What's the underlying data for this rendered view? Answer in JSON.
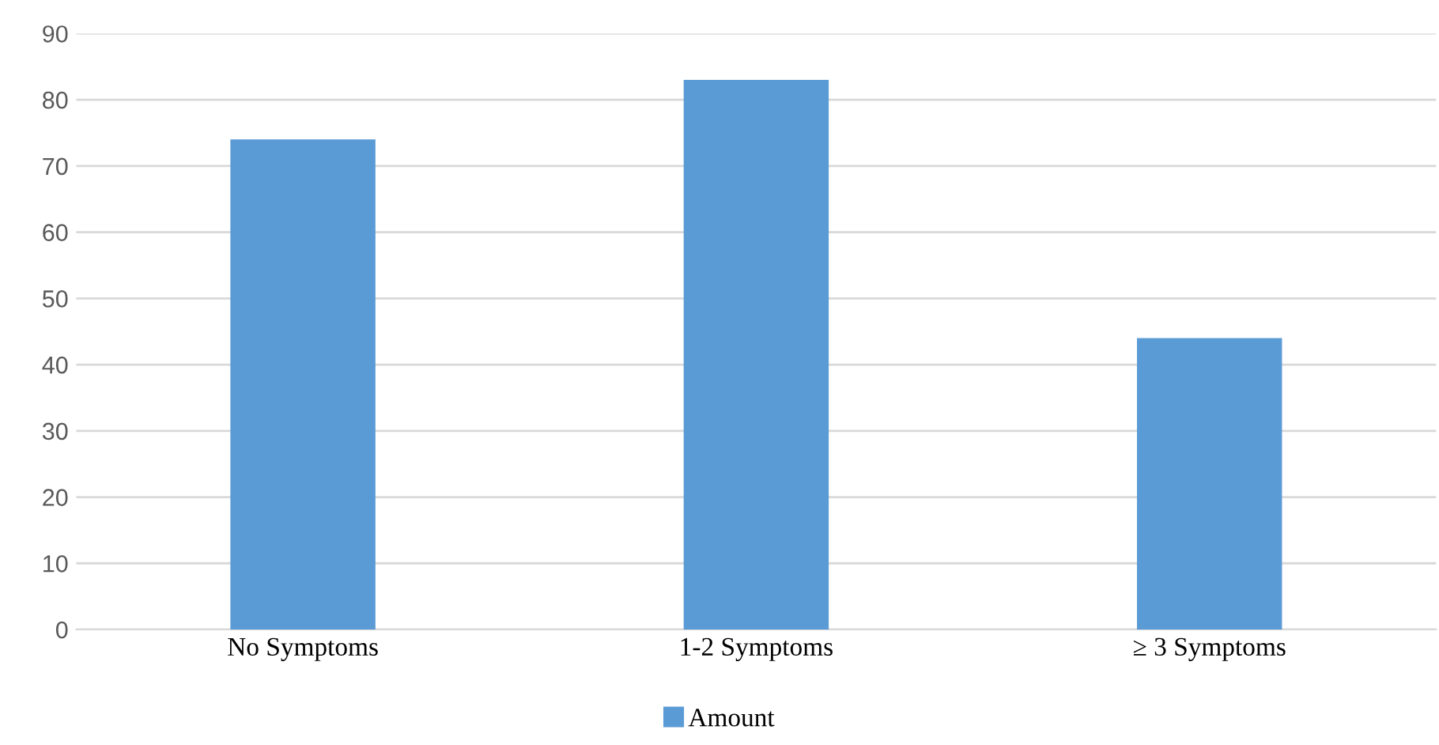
{
  "chart_data": {
    "type": "bar",
    "categories": [
      "No Symptoms",
      "1-2 Symptoms",
      "≥ 3 Symptoms"
    ],
    "series": [
      {
        "name": "Amount",
        "color": "#5b9bd5",
        "values": [
          74,
          83,
          44
        ]
      }
    ],
    "ylim": [
      0,
      90
    ],
    "yticks": [
      0,
      10,
      20,
      30,
      40,
      50,
      60,
      70,
      80,
      90
    ],
    "grid": "y",
    "legend": "bottom"
  }
}
